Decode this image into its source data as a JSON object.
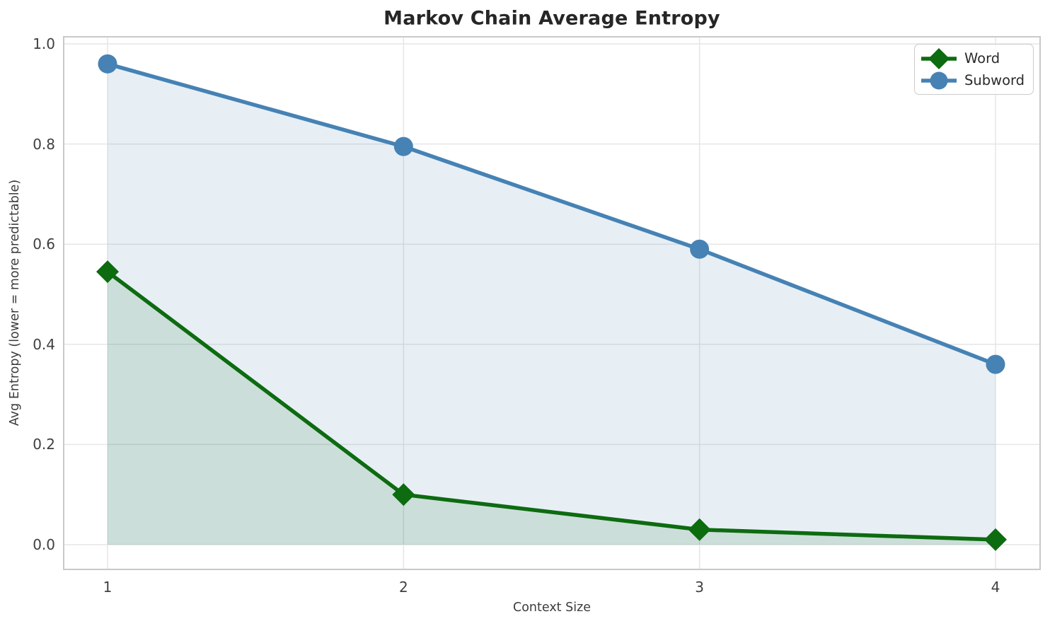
{
  "chart_data": {
    "type": "line",
    "title": "Markov Chain Average Entropy",
    "xlabel": "Context Size",
    "ylabel": "Avg Entropy (lower = more predictable)",
    "x": [
      1,
      2,
      3,
      4
    ],
    "x_tick_labels": [
      "1",
      "2",
      "3",
      "4"
    ],
    "y_tick_values": [
      0.0,
      0.2,
      0.4,
      0.6,
      0.8,
      1.0
    ],
    "y_tick_labels": [
      "0.0",
      "0.2",
      "0.4",
      "0.6",
      "0.8",
      "1.0"
    ],
    "xlim": [
      0.55,
      4.45
    ],
    "ylim": [
      -0.05,
      1.01
    ],
    "grid": true,
    "legend_position": "top-right",
    "area_baseline": 0,
    "series": [
      {
        "name": "Word",
        "marker": "diamond",
        "color": "#0d6b10",
        "fill_opacity": 0.13,
        "values": [
          0.545,
          0.1,
          0.03,
          0.01
        ]
      },
      {
        "name": "Subword",
        "marker": "circle",
        "color": "#4682b4",
        "fill_opacity": 0.13,
        "values": [
          0.96,
          0.795,
          0.59,
          0.36
        ]
      }
    ]
  },
  "colors": {
    "grid": "#e6e6e6",
    "spine": "#c9c9c9",
    "title_text": "#262626",
    "tick_text": "#404040",
    "background": "#ffffff"
  }
}
